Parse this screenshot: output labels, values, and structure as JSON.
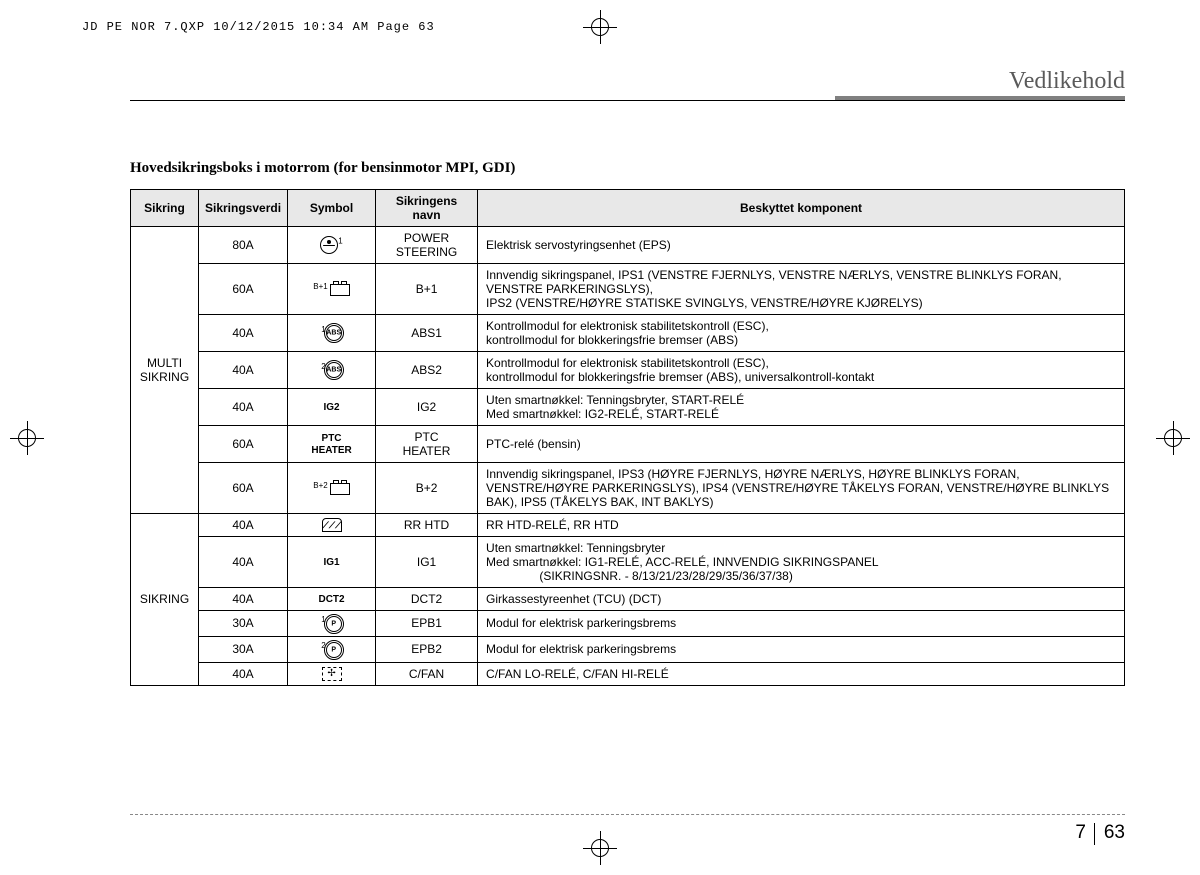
{
  "print_header": "JD PE NOR 7.QXP  10/12/2015  10:34 AM  Page 63",
  "section_title": "Vedlikehold",
  "table_title": "Hovedsikringsboks i motorrom (for bensinmotor MPI, GDI)",
  "columns": {
    "c1": "Sikring",
    "c2": "Sikringsverdi",
    "c3": "Symbol",
    "c4": "Sikringens navn",
    "c5": "Beskyttet komponent"
  },
  "groups": [
    {
      "label": "MULTI\nSIKRING",
      "rows": [
        {
          "rating": "80A",
          "symbol": {
            "type": "steering",
            "sup": "1"
          },
          "name": "POWER\nSTEERING",
          "desc": "Elektrisk servostyringsenhet (EPS)"
        },
        {
          "rating": "60A",
          "symbol": {
            "type": "battery",
            "sup": "B+1"
          },
          "name": "B+1",
          "desc": "Innvendig sikringspanel, IPS1 (VENSTRE FJERNLYS, VENSTRE NÆRLYS, VENSTRE BLINKLYS FORAN, VENSTRE PARKERINGSLYS),\nIPS2 (VENSTRE/HØYRE STATISKE SVINGLYS, VENSTRE/HØYRE KJØRELYS)"
        },
        {
          "rating": "40A",
          "symbol": {
            "type": "abs",
            "sup": "1"
          },
          "name": "ABS1",
          "desc": "Kontrollmodul for elektronisk stabilitetskontroll (ESC),\nkontrollmodul for blokkeringsfrie bremser (ABS)"
        },
        {
          "rating": "40A",
          "symbol": {
            "type": "abs",
            "sup": "2"
          },
          "name": "ABS2",
          "desc": "Kontrollmodul for elektronisk stabilitetskontroll (ESC),\nkontrollmodul for blokkeringsfrie bremser (ABS), universalkontroll-kontakt"
        },
        {
          "rating": "40A",
          "symbol": {
            "type": "text",
            "text": "IG2"
          },
          "name": "IG2",
          "desc": "Uten smartnøkkel: Tenningsbryter, START-RELÉ\nMed smartnøkkel: IG2-RELÉ, START-RELÉ"
        },
        {
          "rating": "60A",
          "symbol": {
            "type": "text",
            "text": "PTC\nHEATER"
          },
          "name": "PTC\nHEATER",
          "desc": "PTC-relé (bensin)"
        },
        {
          "rating": "60A",
          "symbol": {
            "type": "battery",
            "sup": "B+2"
          },
          "name": "B+2",
          "desc": "Innvendig sikringspanel, IPS3 (HØYRE FJERNLYS, HØYRE NÆRLYS, HØYRE BLINKLYS FORAN, VENSTRE/HØYRE PARKERINGSLYS), IPS4 (VENSTRE/HØYRE TÅKELYS FORAN, VENSTRE/HØYRE BLINKLYS BAK), IPS5 (TÅKELYS BAK, INT BAKLYS)"
        }
      ]
    },
    {
      "label": "SIKRING",
      "rows": [
        {
          "rating": "40A",
          "symbol": {
            "type": "defrost"
          },
          "name": "RR HTD",
          "desc": "RR HTD-RELÉ, RR HTD"
        },
        {
          "rating": "40A",
          "symbol": {
            "type": "text",
            "text": "IG1"
          },
          "name": "IG1",
          "desc": "Uten smartnøkkel: Tenningsbryter\nMed smartnøkkel: IG1-RELÉ, ACC-RELÉ, INNVENDIG SIKRINGSPANEL\n                (SIKRINGSNR. - 8/13/21/23/28/29/35/36/37/38)"
        },
        {
          "rating": "40A",
          "symbol": {
            "type": "text",
            "text": "DCT2"
          },
          "name": "DCT2",
          "desc": "Girkassestyreenhet (TCU) (DCT)"
        },
        {
          "rating": "30A",
          "symbol": {
            "type": "p",
            "sup": "1"
          },
          "name": "EPB1",
          "desc": "Modul for elektrisk parkeringsbrems"
        },
        {
          "rating": "30A",
          "symbol": {
            "type": "p",
            "sup": "2"
          },
          "name": "EPB2",
          "desc": "Modul for elektrisk parkeringsbrems"
        },
        {
          "rating": "40A",
          "symbol": {
            "type": "fan"
          },
          "name": "C/FAN",
          "desc": "C/FAN LO-RELÉ, C/FAN HI-RELÉ"
        }
      ]
    }
  ],
  "page_number": {
    "section": "7",
    "page": "63"
  }
}
